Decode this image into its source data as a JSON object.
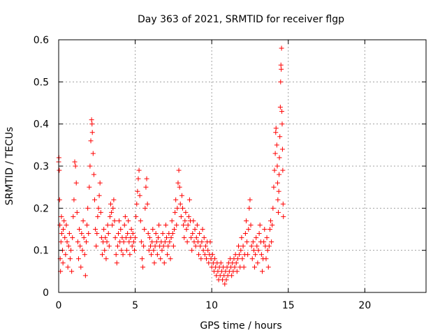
{
  "chart_data": {
    "type": "scatter",
    "title": "Day 363 of 2021, SRMTID for receiver flgp",
    "xlabel": "GPS time / hours",
    "ylabel": "SRMTID / TECUs",
    "xlim": [
      0,
      24
    ],
    "ylim": [
      0,
      0.6
    ],
    "xticks": [
      0,
      5,
      10,
      15,
      20
    ],
    "yticks": [
      0,
      0.1,
      0.2,
      0.3,
      0.4,
      0.5,
      0.6
    ],
    "xtick_labels": [
      "0",
      "5",
      "10",
      "15",
      "20"
    ],
    "ytick_labels": [
      "0",
      "0.1",
      "0.2",
      "0.3",
      "0.4",
      "0.5",
      "0.6"
    ],
    "grid": true,
    "marker": "+",
    "color": "#ff0000",
    "series": [
      {
        "name": "SRMTID",
        "points": [
          [
            0.0,
            0.31
          ],
          [
            0.02,
            0.32
          ],
          [
            0.04,
            0.29
          ],
          [
            0.06,
            0.22
          ],
          [
            0.08,
            0.16
          ],
          [
            0.1,
            0.08
          ],
          [
            0.12,
            0.05
          ],
          [
            0.15,
            0.12
          ],
          [
            0.18,
            0.18
          ],
          [
            0.2,
            0.14
          ],
          [
            0.25,
            0.1
          ],
          [
            0.28,
            0.07
          ],
          [
            0.3,
            0.15
          ],
          [
            0.35,
            0.17
          ],
          [
            0.4,
            0.13
          ],
          [
            0.45,
            0.09
          ],
          [
            0.5,
            0.16
          ],
          [
            0.55,
            0.12
          ],
          [
            0.6,
            0.06
          ],
          [
            0.65,
            0.11
          ],
          [
            0.7,
            0.14
          ],
          [
            0.75,
            0.08
          ],
          [
            0.8,
            0.1
          ],
          [
            0.85,
            0.05
          ],
          [
            0.9,
            0.13
          ],
          [
            0.95,
            0.18
          ],
          [
            1.0,
            0.22
          ],
          [
            1.05,
            0.31
          ],
          [
            1.1,
            0.3
          ],
          [
            1.15,
            0.26
          ],
          [
            1.2,
            0.19
          ],
          [
            1.25,
            0.12
          ],
          [
            1.3,
            0.08
          ],
          [
            1.35,
            0.15
          ],
          [
            1.4,
            0.11
          ],
          [
            1.45,
            0.06
          ],
          [
            1.5,
            0.14
          ],
          [
            1.55,
            0.1
          ],
          [
            1.6,
            0.17
          ],
          [
            1.65,
            0.13
          ],
          [
            1.7,
            0.09
          ],
          [
            1.75,
            0.04
          ],
          [
            1.8,
            0.12
          ],
          [
            1.85,
            0.16
          ],
          [
            1.9,
            0.2
          ],
          [
            1.95,
            0.14
          ],
          [
            2.0,
            0.25
          ],
          [
            2.05,
            0.3
          ],
          [
            2.1,
            0.36
          ],
          [
            2.15,
            0.41
          ],
          [
            2.18,
            0.4
          ],
          [
            2.2,
            0.38
          ],
          [
            2.25,
            0.33
          ],
          [
            2.3,
            0.28
          ],
          [
            2.35,
            0.22
          ],
          [
            2.4,
            0.15
          ],
          [
            2.45,
            0.11
          ],
          [
            2.5,
            0.14
          ],
          [
            2.55,
            0.18
          ],
          [
            2.6,
            0.2
          ],
          [
            2.65,
            0.23
          ],
          [
            2.7,
            0.26
          ],
          [
            2.75,
            0.19
          ],
          [
            2.8,
            0.13
          ],
          [
            2.85,
            0.09
          ],
          [
            2.9,
            0.12
          ],
          [
            2.95,
            0.15
          ],
          [
            3.0,
            0.1
          ],
          [
            3.05,
            0.13
          ],
          [
            3.1,
            0.08
          ],
          [
            3.15,
            0.12
          ],
          [
            3.2,
            0.16
          ],
          [
            3.25,
            0.14
          ],
          [
            3.3,
            0.11
          ],
          [
            3.35,
            0.18
          ],
          [
            3.4,
            0.21
          ],
          [
            3.45,
            0.19
          ],
          [
            3.5,
            0.16
          ],
          [
            3.55,
            0.2
          ],
          [
            3.6,
            0.22
          ],
          [
            3.65,
            0.17
          ],
          [
            3.7,
            0.13
          ],
          [
            3.75,
            0.09
          ],
          [
            3.8,
            0.07
          ],
          [
            3.85,
            0.11
          ],
          [
            3.9,
            0.14
          ],
          [
            3.95,
            0.17
          ],
          [
            4.0,
            0.12
          ],
          [
            4.05,
            0.15
          ],
          [
            4.1,
            0.1
          ],
          [
            4.15,
            0.13
          ],
          [
            4.2,
            0.09
          ],
          [
            4.25,
            0.12
          ],
          [
            4.3,
            0.16
          ],
          [
            4.35,
            0.18
          ],
          [
            4.4,
            0.13
          ],
          [
            4.45,
            0.1
          ],
          [
            4.5,
            0.14
          ],
          [
            4.55,
            0.17
          ],
          [
            4.6,
            0.12
          ],
          [
            4.65,
            0.09
          ],
          [
            4.7,
            0.13
          ],
          [
            4.75,
            0.15
          ],
          [
            4.8,
            0.11
          ],
          [
            4.85,
            0.14
          ],
          [
            4.9,
            0.12
          ],
          [
            4.95,
            0.1
          ],
          [
            5.0,
            0.13
          ],
          [
            5.05,
            0.18
          ],
          [
            5.1,
            0.21
          ],
          [
            5.15,
            0.24
          ],
          [
            5.2,
            0.27
          ],
          [
            5.25,
            0.29
          ],
          [
            5.3,
            0.23
          ],
          [
            5.35,
            0.17
          ],
          [
            5.4,
            0.12
          ],
          [
            5.45,
            0.08
          ],
          [
            5.5,
            0.06
          ],
          [
            5.55,
            0.11
          ],
          [
            5.6,
            0.15
          ],
          [
            5.65,
            0.2
          ],
          [
            5.7,
            0.25
          ],
          [
            5.75,
            0.27
          ],
          [
            5.8,
            0.21
          ],
          [
            5.85,
            0.14
          ],
          [
            5.9,
            0.1
          ],
          [
            5.95,
            0.13
          ],
          [
            6.0,
            0.11
          ],
          [
            6.05,
            0.09
          ],
          [
            6.1,
            0.12
          ],
          [
            6.15,
            0.15
          ],
          [
            6.2,
            0.1
          ],
          [
            6.25,
            0.07
          ],
          [
            6.3,
            0.11
          ],
          [
            6.35,
            0.14
          ],
          [
            6.4,
            0.12
          ],
          [
            6.45,
            0.09
          ],
          [
            6.5,
            0.13
          ],
          [
            6.55,
            0.16
          ],
          [
            6.6,
            0.11
          ],
          [
            6.65,
            0.08
          ],
          [
            6.7,
            0.12
          ],
          [
            6.75,
            0.1
          ],
          [
            6.8,
            0.14
          ],
          [
            6.85,
            0.11
          ],
          [
            6.9,
            0.07
          ],
          [
            6.95,
            0.12
          ],
          [
            7.0,
            0.16
          ],
          [
            7.05,
            0.13
          ],
          [
            7.1,
            0.09
          ],
          [
            7.15,
            0.11
          ],
          [
            7.2,
            0.14
          ],
          [
            7.25,
            0.12
          ],
          [
            7.3,
            0.08
          ],
          [
            7.35,
            0.13
          ],
          [
            7.4,
            0.17
          ],
          [
            7.45,
            0.14
          ],
          [
            7.5,
            0.11
          ],
          [
            7.55,
            0.15
          ],
          [
            7.6,
            0.19
          ],
          [
            7.65,
            0.22
          ],
          [
            7.7,
            0.16
          ],
          [
            7.75,
            0.2
          ],
          [
            7.8,
            0.26
          ],
          [
            7.85,
            0.29
          ],
          [
            7.9,
            0.25
          ],
          [
            7.95,
            0.21
          ],
          [
            8.0,
            0.18
          ],
          [
            8.05,
            0.23
          ],
          [
            8.1,
            0.2
          ],
          [
            8.15,
            0.16
          ],
          [
            8.2,
            0.13
          ],
          [
            8.25,
            0.17
          ],
          [
            8.3,
            0.19
          ],
          [
            8.35,
            0.15
          ],
          [
            8.4,
            0.12
          ],
          [
            8.45,
            0.16
          ],
          [
            8.5,
            0.18
          ],
          [
            8.55,
            0.22
          ],
          [
            8.6,
            0.17
          ],
          [
            8.65,
            0.13
          ],
          [
            8.7,
            0.1
          ],
          [
            8.75,
            0.14
          ],
          [
            8.8,
            0.17
          ],
          [
            8.85,
            0.12
          ],
          [
            8.9,
            0.15
          ],
          [
            8.95,
            0.11
          ],
          [
            9.0,
            0.13
          ],
          [
            9.05,
            0.16
          ],
          [
            9.1,
            0.12
          ],
          [
            9.15,
            0.09
          ],
          [
            9.2,
            0.14
          ],
          [
            9.25,
            0.11
          ],
          [
            9.3,
            0.08
          ],
          [
            9.35,
            0.12
          ],
          [
            9.4,
            0.15
          ],
          [
            9.45,
            0.1
          ],
          [
            9.5,
            0.13
          ],
          [
            9.55,
            0.09
          ],
          [
            9.6,
            0.11
          ],
          [
            9.65,
            0.08
          ],
          [
            9.7,
            0.12
          ],
          [
            9.75,
            0.1
          ],
          [
            9.8,
            0.07
          ],
          [
            9.85,
            0.09
          ],
          [
            9.9,
            0.12
          ],
          [
            9.95,
            0.08
          ],
          [
            10.0,
            0.06
          ],
          [
            10.05,
            0.09
          ],
          [
            10.1,
            0.07
          ],
          [
            10.15,
            0.05
          ],
          [
            10.2,
            0.08
          ],
          [
            10.25,
            0.06
          ],
          [
            10.3,
            0.04
          ],
          [
            10.35,
            0.07
          ],
          [
            10.4,
            0.05
          ],
          [
            10.45,
            0.03
          ],
          [
            10.5,
            0.06
          ],
          [
            10.55,
            0.04
          ],
          [
            10.6,
            0.07
          ],
          [
            10.65,
            0.05
          ],
          [
            10.7,
            0.03
          ],
          [
            10.75,
            0.06
          ],
          [
            10.8,
            0.04
          ],
          [
            10.85,
            0.02
          ],
          [
            10.9,
            0.05
          ],
          [
            10.95,
            0.03
          ],
          [
            11.0,
            0.06
          ],
          [
            11.05,
            0.04
          ],
          [
            11.1,
            0.07
          ],
          [
            11.15,
            0.05
          ],
          [
            11.2,
            0.08
          ],
          [
            11.25,
            0.06
          ],
          [
            11.3,
            0.04
          ],
          [
            11.35,
            0.07
          ],
          [
            11.4,
            0.05
          ],
          [
            11.45,
            0.08
          ],
          [
            11.5,
            0.06
          ],
          [
            11.55,
            0.09
          ],
          [
            11.6,
            0.07
          ],
          [
            11.65,
            0.05
          ],
          [
            11.7,
            0.08
          ],
          [
            11.75,
            0.11
          ],
          [
            11.8,
            0.09
          ],
          [
            11.85,
            0.06
          ],
          [
            11.9,
            0.1
          ],
          [
            11.95,
            0.13
          ],
          [
            12.0,
            0.08
          ],
          [
            12.05,
            0.11
          ],
          [
            12.1,
            0.06
          ],
          [
            12.15,
            0.09
          ],
          [
            12.2,
            0.14
          ],
          [
            12.25,
            0.17
          ],
          [
            12.3,
            0.12
          ],
          [
            12.35,
            0.09
          ],
          [
            12.4,
            0.15
          ],
          [
            12.45,
            0.2
          ],
          [
            12.5,
            0.22
          ],
          [
            12.55,
            0.16
          ],
          [
            12.6,
            0.11
          ],
          [
            12.65,
            0.08
          ],
          [
            12.7,
            0.12
          ],
          [
            12.75,
            0.1
          ],
          [
            12.8,
            0.06
          ],
          [
            12.85,
            0.09
          ],
          [
            12.9,
            0.13
          ],
          [
            12.95,
            0.11
          ],
          [
            13.0,
            0.07
          ],
          [
            13.05,
            0.1
          ],
          [
            13.1,
            0.14
          ],
          [
            13.15,
            0.16
          ],
          [
            13.2,
            0.12
          ],
          [
            13.25,
            0.09
          ],
          [
            13.3,
            0.05
          ],
          [
            13.35,
            0.08
          ],
          [
            13.4,
            0.12
          ],
          [
            13.45,
            0.15
          ],
          [
            13.5,
            0.11
          ],
          [
            13.55,
            0.08
          ],
          [
            13.6,
            0.13
          ],
          [
            13.65,
            0.1
          ],
          [
            13.7,
            0.06
          ],
          [
            13.75,
            0.11
          ],
          [
            13.8,
            0.15
          ],
          [
            13.85,
            0.17
          ],
          [
            13.9,
            0.12
          ],
          [
            13.95,
            0.16
          ],
          [
            14.0,
            0.2
          ],
          [
            14.05,
            0.25
          ],
          [
            14.1,
            0.29
          ],
          [
            14.15,
            0.33
          ],
          [
            14.18,
            0.38
          ],
          [
            14.2,
            0.39
          ],
          [
            14.25,
            0.35
          ],
          [
            14.28,
            0.3
          ],
          [
            14.3,
            0.26
          ],
          [
            14.32,
            0.22
          ],
          [
            14.35,
            0.19
          ],
          [
            14.38,
            0.24
          ],
          [
            14.4,
            0.28
          ],
          [
            14.42,
            0.32
          ],
          [
            14.45,
            0.37
          ],
          [
            14.48,
            0.44
          ],
          [
            14.5,
            0.5
          ],
          [
            14.52,
            0.54
          ],
          [
            14.54,
            0.53
          ],
          [
            14.56,
            0.58
          ],
          [
            14.58,
            0.43
          ],
          [
            14.6,
            0.4
          ],
          [
            14.62,
            0.34
          ],
          [
            14.64,
            0.29
          ],
          [
            14.66,
            0.21
          ],
          [
            14.68,
            0.18
          ]
        ]
      }
    ]
  }
}
